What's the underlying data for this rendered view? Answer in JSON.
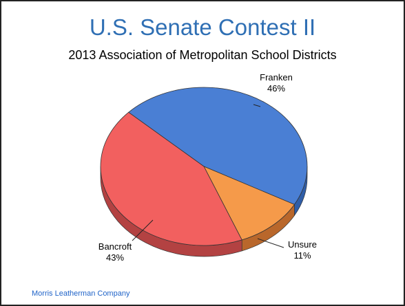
{
  "header": {
    "title": "U.S. Senate Contest II",
    "subtitle": "2013 Association of Metropolitan School Districts"
  },
  "footer": {
    "source": "Morris Leatherman Company"
  },
  "colors": {
    "title": "#2f6fb4",
    "footer": "#1f63c8"
  },
  "chart_data": {
    "type": "pie",
    "title": "U.S. Senate Contest II",
    "subtitle": "2013 Association of Metropolitan School Districts",
    "style": "3d",
    "slices": [
      {
        "label": "Franken",
        "value": 46,
        "value_label": "46%",
        "color": "#4a7fd4",
        "side_color": "#2f5ea8"
      },
      {
        "label": "Unsure",
        "value": 11,
        "value_label": "11%",
        "color": "#f59a4a",
        "side_color": "#b9672b"
      },
      {
        "label": "Bancroft",
        "value": 43,
        "value_label": "43%",
        "color": "#f2605f",
        "side_color": "#b34242"
      }
    ]
  }
}
